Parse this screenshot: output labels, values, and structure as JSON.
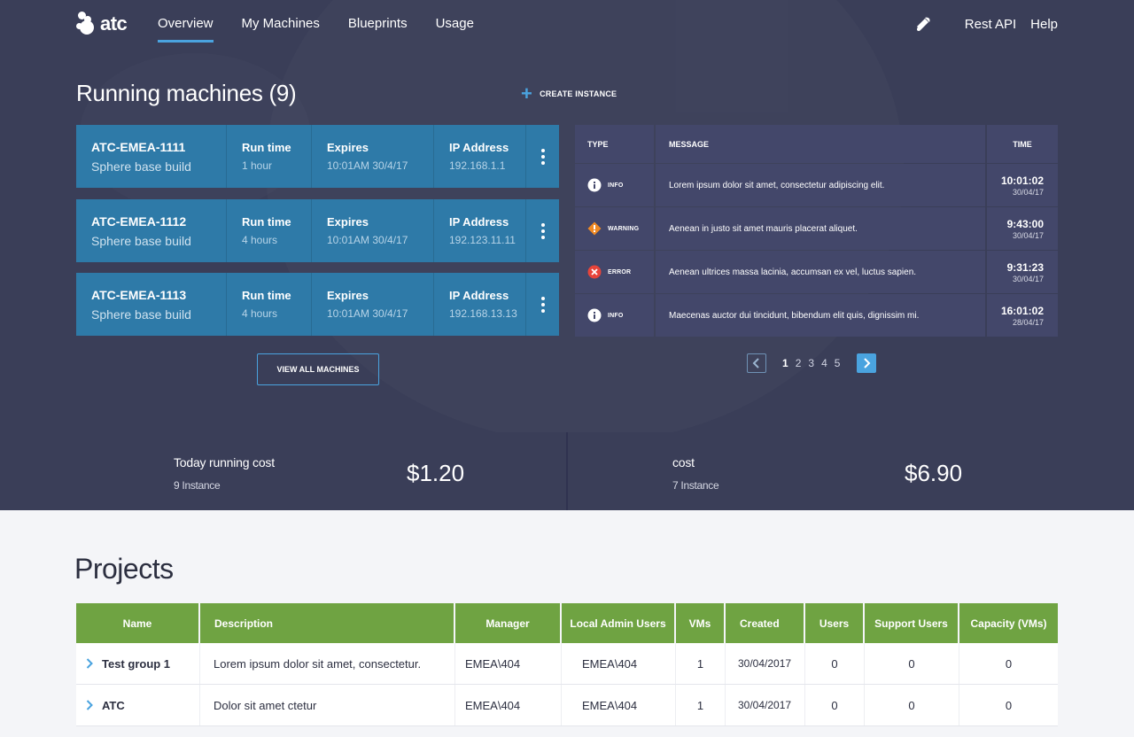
{
  "brand": {
    "name": "atc"
  },
  "nav": {
    "items": [
      {
        "label": "Overview",
        "active": true
      },
      {
        "label": "My Machines"
      },
      {
        "label": "Blueprints"
      },
      {
        "label": "Usage"
      }
    ],
    "right": {
      "bell_icon": "bell-icon",
      "rest_api": "Rest API",
      "help": "Help"
    }
  },
  "running": {
    "title": "Running machines (9)",
    "create_label": "CREATE INSTANCE",
    "labels": {
      "run_time": "Run time",
      "expires": "Expires",
      "ip": "IP Address"
    },
    "machines": [
      {
        "name": "ATC-EMEA-1111",
        "build": "Sphere base build",
        "run_time": "1 hour",
        "expires": "10:01AM  30/4/17",
        "ip": "192.168.1.1"
      },
      {
        "name": "ATC-EMEA-1112",
        "build": "Sphere base build",
        "run_time": "4 hours",
        "expires": "10:01AM  30/4/17",
        "ip": "192.123.11.11"
      },
      {
        "name": "ATC-EMEA-1113",
        "build": "Sphere base build",
        "run_time": "4 hours",
        "expires": "10:01AM  30/4/17",
        "ip": "192.168.13.13"
      }
    ],
    "view_all_label": "VIEW ALL MACHINES"
  },
  "log": {
    "headers": {
      "type": "TYPE",
      "message": "MESSAGE",
      "time": "TIME"
    },
    "rows": [
      {
        "type": "INFO",
        "icon": "info-icon",
        "color": "#ffffff",
        "message": "Lorem ipsum dolor sit amet, consectetur adipiscing elit.",
        "time": "10:01:02",
        "date": "30/04/17"
      },
      {
        "type": "WARNING",
        "icon": "warning-icon",
        "color": "#f08a24",
        "message": "Aenean in justo sit amet mauris placerat aliquet.",
        "time": "9:43:00",
        "date": "30/04/17"
      },
      {
        "type": "ERROR",
        "icon": "error-icon",
        "color": "#e8443a",
        "message": "Aenean ultrices massa lacinia, accumsan ex vel, luctus sapien.",
        "time": "9:31:23",
        "date": "30/04/17"
      },
      {
        "type": "INFO",
        "icon": "info-icon",
        "color": "#ffffff",
        "message": "Maecenas auctor dui tincidunt, bibendum elit quis, dignissim mi.",
        "time": "16:01:02",
        "date": "28/04/17"
      }
    ],
    "pagination": {
      "pages": [
        "1",
        "2",
        "3",
        "4",
        "5"
      ],
      "current": "1"
    }
  },
  "costs": [
    {
      "title": "Today running cost",
      "sub": "9 Instance",
      "value": "$1.20"
    },
    {
      "title": "cost",
      "sub": "7 Instance",
      "value": "$6.90"
    }
  ],
  "projects": {
    "title": "Projects",
    "headers": {
      "name": "Name",
      "description": "Description",
      "manager": "Manager",
      "local_admin": "Local Admin Users",
      "vms": "VMs",
      "created": "Created",
      "users": "Users",
      "support": "Support Users",
      "capacity": "Capacity (VMs)"
    },
    "rows": [
      {
        "name": "Test group 1",
        "description": "Lorem ipsum dolor sit amet, consectetur.",
        "manager": "EMEA\\404",
        "local_admin": "EMEA\\404",
        "vms": "1",
        "created": "30/04/2017",
        "users": "0",
        "support": "0",
        "capacity": "0"
      },
      {
        "name": "ATC",
        "description": "Dolor sit amet ctetur",
        "manager": "EMEA\\404",
        "local_admin": "EMEA\\404",
        "vms": "1",
        "created": "30/04/2017",
        "users": "0",
        "support": "0",
        "capacity": "0"
      }
    ]
  },
  "colors": {
    "header_bg": "#3a3e58",
    "machine_bg": "#2e7aa8",
    "accent": "#4aa3df",
    "table_head": "#6fa342"
  }
}
